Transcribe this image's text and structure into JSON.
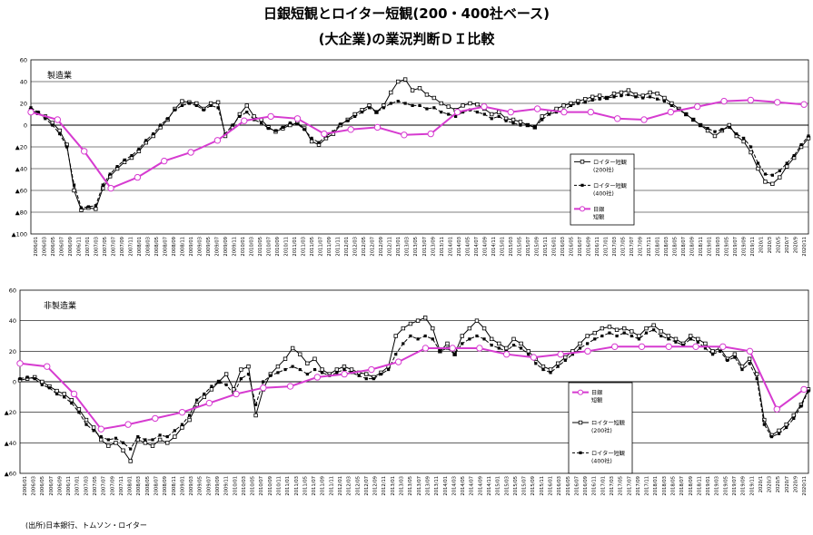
{
  "title_line1": "日銀短観とロイター短観(200・400社ベース)",
  "title_line2": "(大企業)の業況判断ＤＩ比較",
  "source": "(出所)日本銀行、トムソン・ロイター",
  "colors": {
    "tankan": "#d63bd0",
    "r200": "#000000",
    "r400": "#000000",
    "grid": "#000000"
  },
  "chart_data": [
    {
      "type": "line",
      "panel_label": "製造業",
      "ylim": [
        -100,
        60
      ],
      "yticks": [
        60,
        40,
        20,
        0,
        -20,
        -40,
        -60,
        -80,
        -100
      ],
      "ytick_labels": [
        "60",
        "40",
        "20",
        "0",
        "▲20",
        "▲40",
        "▲60",
        "▲80",
        "▲100"
      ],
      "xlim": [
        0,
        175
      ],
      "x_tick_labels": [
        "2006/01",
        "2006/03",
        "2006/05",
        "2006/07",
        "2006/09",
        "2006/11",
        "2007/01",
        "2007/03",
        "2007/05",
        "2007/07",
        "2007/09",
        "2007/11",
        "2008/01",
        "2008/03",
        "2008/05",
        "2008/07",
        "2008/09",
        "2008/11",
        "2009/01",
        "2009/03",
        "2009/05",
        "2009/07",
        "2009/09",
        "2009/11",
        "2010/01",
        "2010/03",
        "2010/05",
        "2010/07",
        "2010/09",
        "2010/11",
        "2011/01",
        "2011/03",
        "2011/05",
        "2011/07",
        "2011/09",
        "2011/11",
        "2012/01",
        "2012/03",
        "2012/05",
        "2012/07",
        "2012/09",
        "2012/11",
        "2013/01",
        "2013/03",
        "2013/05",
        "2013/07",
        "2013/09",
        "2013/11",
        "2014/01",
        "2014/03",
        "2014/05",
        "2014/07",
        "2014/09",
        "2014/11",
        "2015/01",
        "2015/03",
        "2015/05",
        "2015/07",
        "2015/09",
        "2015/11",
        "2016/01",
        "2016/03",
        "2016/05",
        "2016/07",
        "2016/09",
        "2016/11",
        "2017/01",
        "2017/03",
        "2017/05",
        "2017/07",
        "2017/09",
        "2017/11",
        "2018/01",
        "2018/03",
        "2018/05",
        "2018/07",
        "2018/09",
        "2018/11",
        "2019/01",
        "2019/03",
        "2019/05",
        "2019/07",
        "2019/09",
        "2019/11",
        "2020/1",
        "2020/3",
        "2020/5",
        "2020/7",
        "2020/9",
        "2020/11"
      ],
      "legend": [
        "ロイター短観",
        "(200社)",
        "ロイター短観",
        "(400社)",
        "日銀",
        "短観"
      ],
      "legend_position": "center-right",
      "series": [
        {
          "name": "ロイター短観(200社)",
          "key": "r200",
          "values": [
            14,
            11,
            8,
            2,
            -5,
            -18,
            -60,
            -78,
            -76,
            -77,
            -58,
            -47,
            -40,
            -34,
            -30,
            -24,
            -16,
            -10,
            -2,
            5,
            15,
            22,
            21,
            20,
            15,
            20,
            21,
            -10,
            -2,
            10,
            18,
            8,
            5,
            -2,
            -6,
            -3,
            0,
            2,
            -3,
            -15,
            -18,
            -12,
            -8,
            0,
            5,
            10,
            14,
            18,
            12,
            18,
            30,
            40,
            42,
            32,
            34,
            28,
            25,
            20,
            17,
            14,
            18,
            20,
            19,
            15,
            10,
            12,
            6,
            5,
            3,
            0,
            -2,
            8,
            12,
            15,
            18,
            20,
            22,
            24,
            26,
            27,
            25,
            29,
            30,
            32,
            28,
            27,
            30,
            29,
            25,
            20,
            15,
            10,
            5,
            0,
            -5,
            -10,
            -5,
            0,
            -10,
            -15,
            -25,
            -40,
            -52,
            -54,
            -48,
            -38,
            -30,
            -20,
            -12
          ]
        },
        {
          "name": "ロイター短観(400社)",
          "key": "r400",
          "values": [
            16,
            12,
            6,
            0,
            -8,
            -20,
            -55,
            -76,
            -75,
            -74,
            -55,
            -45,
            -38,
            -32,
            -28,
            -22,
            -14,
            -8,
            0,
            6,
            14,
            18,
            20,
            18,
            14,
            18,
            16,
            -8,
            0,
            8,
            12,
            5,
            2,
            -3,
            -5,
            -2,
            2,
            1,
            -4,
            -12,
            -16,
            -10,
            -6,
            1,
            4,
            8,
            12,
            16,
            12,
            16,
            20,
            22,
            20,
            18,
            18,
            15,
            16,
            12,
            10,
            8,
            12,
            14,
            12,
            10,
            6,
            8,
            4,
            2,
            0,
            0,
            -2,
            5,
            10,
            12,
            14,
            18,
            20,
            21,
            23,
            24,
            25,
            26,
            27,
            28,
            26,
            25,
            26,
            24,
            22,
            18,
            14,
            10,
            5,
            0,
            -3,
            -6,
            -4,
            -2,
            -8,
            -12,
            -20,
            -35,
            -45,
            -46,
            -42,
            -35,
            -28,
            -18,
            -10
          ]
        },
        {
          "name": "日銀短観",
          "key": "tankan",
          "x": [
            0,
            6,
            12,
            18,
            24,
            30,
            36,
            42,
            48,
            54,
            60,
            66,
            72,
            78,
            84,
            90,
            96,
            102,
            108,
            114,
            120,
            126,
            132,
            138,
            144,
            150,
            156,
            162,
            168,
            174
          ],
          "values": [
            12,
            5,
            -24,
            -58,
            -48,
            -33,
            -25,
            -14,
            4,
            8,
            6,
            -8,
            -4,
            -2,
            -9,
            -8,
            12,
            17,
            12,
            15,
            12,
            12,
            6,
            5,
            12,
            17,
            22,
            23,
            21,
            19
          ]
        }
      ]
    },
    {
      "type": "line",
      "panel_label": "非製造業",
      "ylim": [
        -60,
        60
      ],
      "yticks": [
        60,
        40,
        20,
        0,
        -20,
        -40,
        -60
      ],
      "ytick_labels": [
        "60",
        "40",
        "20",
        "0",
        "▲20",
        "▲40",
        "▲60"
      ],
      "xlim": [
        0,
        175
      ],
      "x_tick_labels": [
        "2006/01",
        "2006/03",
        "2006/05",
        "2006/07",
        "2006/09",
        "2006/11",
        "2007/01",
        "2007/03",
        "2007/05",
        "2007/07",
        "2007/09",
        "2007/11",
        "2008/01",
        "2008/03",
        "2008/05",
        "2008/07",
        "2008/09",
        "2008/11",
        "2009/01",
        "2009/03",
        "2009/05",
        "2009/07",
        "2009/09",
        "2009/11",
        "2010/01",
        "2010/03",
        "2010/05",
        "2010/07",
        "2010/09",
        "2010/11",
        "2011/01",
        "2011/03",
        "2011/05",
        "2011/07",
        "2011/09",
        "2011/11",
        "2012/01",
        "2012/03",
        "2012/05",
        "2012/07",
        "2012/09",
        "2012/11",
        "2013/01",
        "2013/03",
        "2013/05",
        "2013/07",
        "2013/09",
        "2013/11",
        "2014/01",
        "2014/03",
        "2014/05",
        "2014/07",
        "2014/09",
        "2014/11",
        "2015/01",
        "2015/03",
        "2015/05",
        "2015/07",
        "2015/09",
        "2015/11",
        "2016/01",
        "2016/03",
        "2016/05",
        "2016/07",
        "2016/09",
        "2016/11",
        "2017/01",
        "2017/03",
        "2017/05",
        "2017/07",
        "2017/09",
        "2017/11",
        "2018/01",
        "2018/03",
        "2018/05",
        "2018/07",
        "2018/09",
        "2018/11",
        "2019/01",
        "2019/03",
        "2019/05",
        "2019/07",
        "2019/09",
        "2019/11",
        "2020/1",
        "2020/3",
        "2020/5",
        "2020/7",
        "2020/9",
        "2020/11"
      ],
      "legend": [
        "日銀",
        "短観",
        "ロイター短観",
        "(200社)",
        "ロイター短観",
        "(400社)"
      ],
      "legend_position": "center-right",
      "series": [
        {
          "name": "ロイター短観(200社)",
          "key": "r200",
          "values": [
            1,
            2,
            3,
            0,
            -3,
            -6,
            -8,
            -12,
            -18,
            -25,
            -30,
            -38,
            -42,
            -40,
            -45,
            -52,
            -38,
            -40,
            -42,
            -38,
            -40,
            -36,
            -30,
            -25,
            -15,
            -10,
            -5,
            0,
            5,
            -5,
            8,
            10,
            -22,
            -5,
            5,
            10,
            15,
            22,
            18,
            12,
            15,
            8,
            5,
            8,
            10,
            8,
            6,
            5,
            3,
            6,
            10,
            30,
            35,
            38,
            40,
            42,
            35,
            20,
            25,
            18,
            30,
            35,
            40,
            35,
            28,
            25,
            22,
            28,
            25,
            20,
            15,
            10,
            8,
            12,
            16,
            20,
            25,
            30,
            32,
            35,
            36,
            34,
            35,
            33,
            30,
            35,
            37,
            33,
            30,
            28,
            25,
            30,
            28,
            25,
            20,
            22,
            15,
            18,
            10,
            15,
            5,
            -25,
            -35,
            -32,
            -28,
            -22,
            -15,
            -5
          ]
        },
        {
          "name": "ロイター短観(400社)",
          "key": "r400",
          "values": [
            2,
            3,
            2,
            -2,
            -4,
            -8,
            -10,
            -14,
            -20,
            -28,
            -32,
            -36,
            -38,
            -37,
            -40,
            -44,
            -36,
            -38,
            -38,
            -35,
            -36,
            -32,
            -28,
            -22,
            -12,
            -8,
            -3,
            0,
            -2,
            -8,
            2,
            5,
            -15,
            0,
            4,
            6,
            8,
            10,
            8,
            5,
            8,
            6,
            4,
            6,
            8,
            6,
            4,
            2,
            2,
            5,
            8,
            18,
            25,
            30,
            28,
            30,
            28,
            20,
            22,
            18,
            25,
            28,
            30,
            28,
            24,
            22,
            20,
            24,
            22,
            18,
            12,
            8,
            6,
            10,
            14,
            18,
            22,
            25,
            28,
            30,
            32,
            30,
            32,
            30,
            28,
            32,
            34,
            30,
            28,
            26,
            24,
            28,
            26,
            22,
            18,
            20,
            14,
            16,
            8,
            12,
            2,
            -28,
            -36,
            -34,
            -30,
            -24,
            -16,
            -6
          ]
        },
        {
          "name": "日銀短観",
          "key": "tankan",
          "x": [
            0,
            6,
            12,
            18,
            24,
            30,
            36,
            42,
            48,
            54,
            60,
            66,
            72,
            78,
            84,
            90,
            96,
            102,
            108,
            114,
            120,
            126,
            132,
            138,
            144,
            150,
            156,
            162,
            168,
            174
          ],
          "values": [
            12,
            10,
            -8,
            -31,
            -28,
            -24,
            -20,
            -14,
            -8,
            -4,
            -3,
            3,
            5,
            8,
            13,
            22,
            22,
            22,
            18,
            16,
            18,
            20,
            23,
            23,
            23,
            23,
            23,
            20,
            -18,
            -5
          ]
        }
      ]
    }
  ]
}
